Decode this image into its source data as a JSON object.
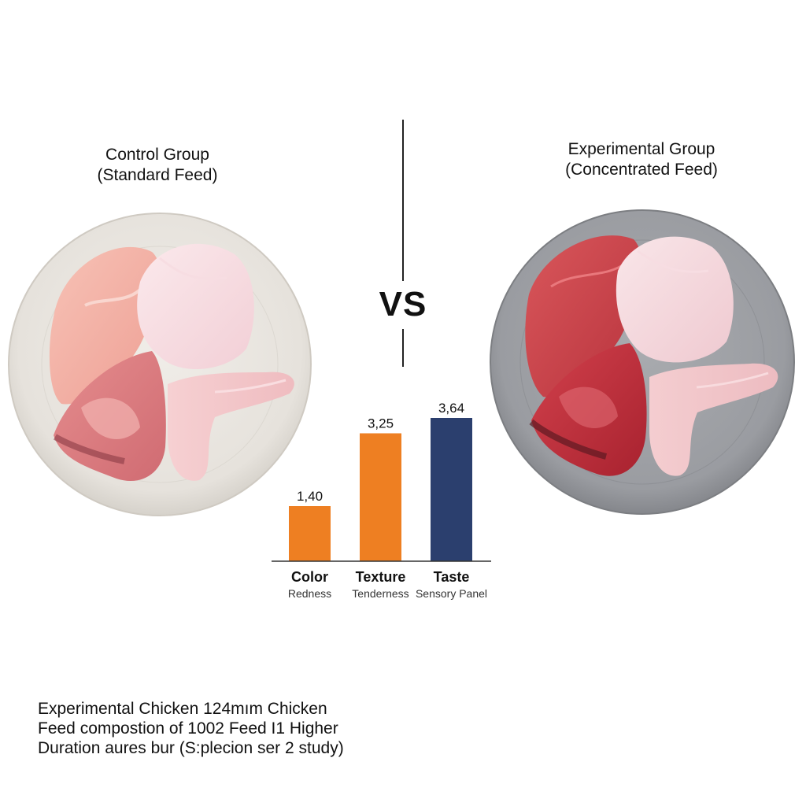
{
  "control_group": {
    "title_line1": "Control Group",
    "title_line2": "(Standard Feed)"
  },
  "experimental_group": {
    "title_line1": "Experimental Group",
    "title_line2": "(Concentrated Feed)"
  },
  "vs_label": "VS",
  "chart_data": {
    "type": "bar",
    "categories": [
      "Color",
      "Texture",
      "Taste"
    ],
    "sublabels": [
      "Redness",
      "Tenderness",
      "Sensory Panel"
    ],
    "values": [
      1.4,
      3.25,
      3.64
    ],
    "value_labels": [
      "1,40",
      "3,25",
      "3,64"
    ],
    "colors": [
      "#ee7f22",
      "#ee7f22",
      "#2b3f6e"
    ],
    "ylim": [
      0,
      3.8
    ],
    "title": "",
    "xlabel": "",
    "ylabel": ""
  },
  "footnote": {
    "line1": "Experimental Chicken 124mım Chicken",
    "line2": "Feed compostion of 1002 Feed I1 Higher",
    "line3": "Duration aures bur (S:plecion ser 2 study)"
  },
  "colors": {
    "plate_control": "#e9e6e0",
    "plate_experimental": "#9d9fa3",
    "meat_pale": "#f3b0a6",
    "meat_dark": "#c2303a"
  }
}
